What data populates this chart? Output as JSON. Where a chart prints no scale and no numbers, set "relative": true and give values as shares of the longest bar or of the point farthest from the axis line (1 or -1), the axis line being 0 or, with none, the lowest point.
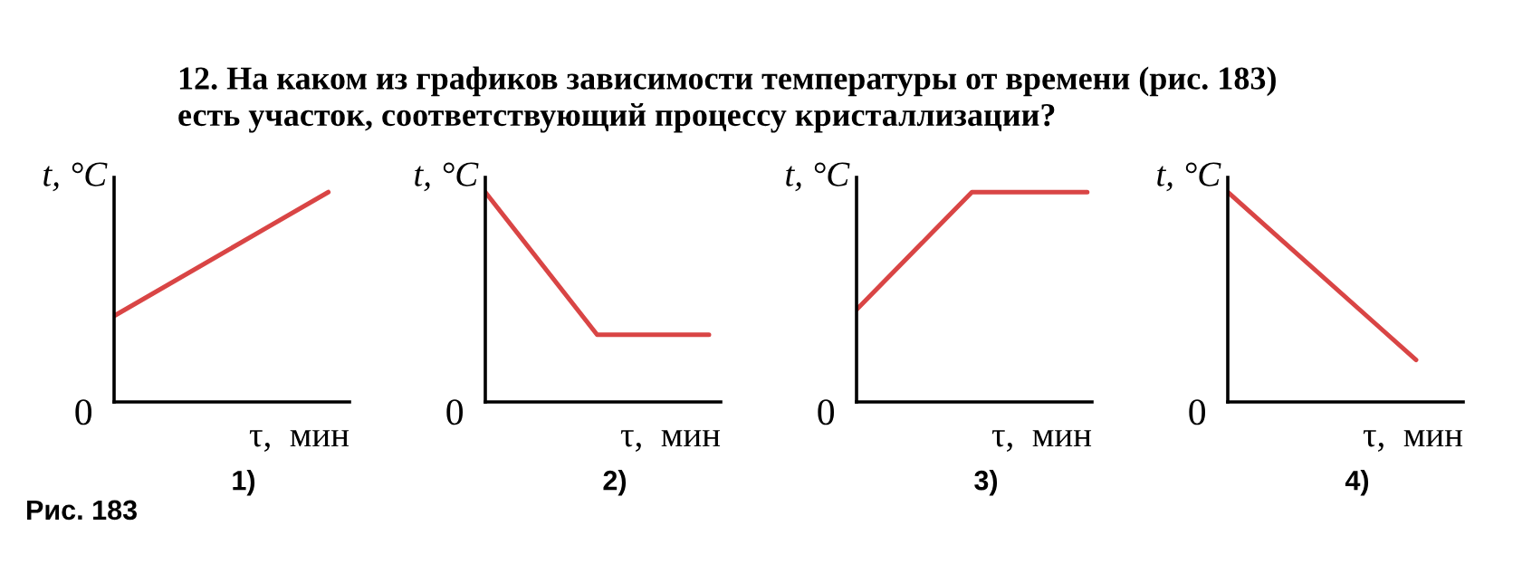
{
  "chart_data": [
    {
      "type": "line",
      "title": "12. На каком из графиков зависимости температуры от времени (рис. 183)\nесть участок, соответствующий процессу кристаллизации?",
      "relative": true,
      "xlabel": "τ,  мин",
      "ylabel": "t, °C",
      "categories": [
        null,
        null
      ],
      "series": [
        {
          "color": "#d94545",
          "values": [
            0.41,
            1
          ]
        }
      ],
      "annotations": [
        "0",
        "1)",
        "Рис. 183"
      ]
    },
    {
      "type": "line",
      "relative": true,
      "xlabel": "τ,  мин",
      "ylabel": "t, °C",
      "categories": [
        null,
        null,
        null
      ],
      "series": [
        {
          "color": "#d94545",
          "values": [
            1,
            0.32,
            0.32
          ]
        }
      ],
      "annotations": [
        "0",
        "2)"
      ]
    },
    {
      "type": "line",
      "relative": true,
      "xlabel": "τ,  мин",
      "ylabel": "t, °C",
      "categories": [
        null,
        null,
        null
      ],
      "series": [
        {
          "color": "#d94545",
          "values": [
            0.44,
            1,
            1
          ]
        }
      ],
      "annotations": [
        "0",
        "3)"
      ]
    },
    {
      "type": "line",
      "relative": true,
      "xlabel": "τ,  мин",
      "ylabel": "t, °C",
      "categories": [
        null,
        null
      ],
      "series": [
        {
          "color": "#d94545",
          "values": [
            1,
            0.2
          ]
        }
      ],
      "annotations": [
        "0",
        "4)"
      ]
    }
  ]
}
